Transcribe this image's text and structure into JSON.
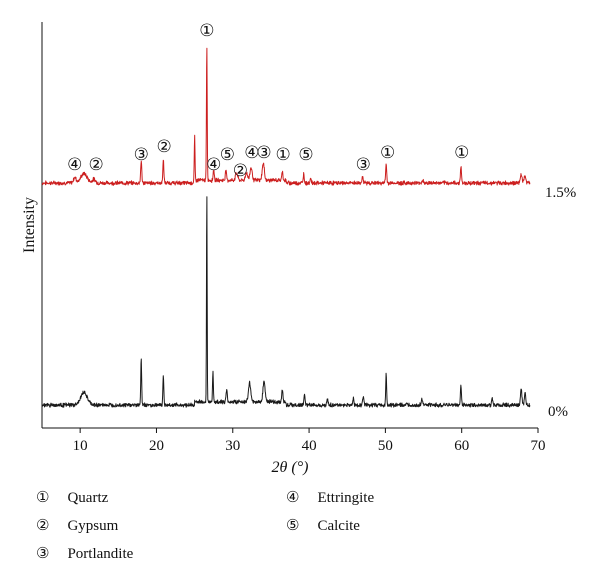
{
  "chart_data": {
    "type": "line",
    "xlabel": "2θ (°)",
    "ylabel": "Intensity",
    "xlim": [
      5,
      70
    ],
    "xticks": [
      "10",
      "20",
      "30",
      "40",
      "50",
      "60",
      "70"
    ],
    "grid": false,
    "series": [
      {
        "name": "1.5%",
        "color": "#cc1f1f",
        "baseline": 0.0,
        "peaks": [
          {
            "x": 9.3,
            "h": 3,
            "w": 0.25
          },
          {
            "x": 10.5,
            "h": 5,
            "w": 0.6
          },
          {
            "x": 11.8,
            "h": 2,
            "w": 0.3
          },
          {
            "x": 18.0,
            "h": 12,
            "w": 0.1
          },
          {
            "x": 20.9,
            "h": 12,
            "w": 0.1
          },
          {
            "x": 25.0,
            "h": 24,
            "w": 0.07
          },
          {
            "x": 26.6,
            "h": 72,
            "w": 0.07
          },
          {
            "x": 27.5,
            "h": 6,
            "w": 0.1
          },
          {
            "x": 29.1,
            "h": 5,
            "w": 0.12
          },
          {
            "x": 30.5,
            "h": 4,
            "w": 0.2
          },
          {
            "x": 31.8,
            "h": 4,
            "w": 0.2
          },
          {
            "x": 32.4,
            "h": 7,
            "w": 0.2
          },
          {
            "x": 34.0,
            "h": 9,
            "w": 0.2
          },
          {
            "x": 36.5,
            "h": 5,
            "w": 0.1
          },
          {
            "x": 39.3,
            "h": 5,
            "w": 0.1
          },
          {
            "x": 40.2,
            "h": 3,
            "w": 0.1
          },
          {
            "x": 47.0,
            "h": 4,
            "w": 0.1
          },
          {
            "x": 50.1,
            "h": 10,
            "w": 0.1
          },
          {
            "x": 54.9,
            "h": 2,
            "w": 0.1
          },
          {
            "x": 59.9,
            "h": 9,
            "w": 0.1
          },
          {
            "x": 67.8,
            "h": 5,
            "w": 0.15
          },
          {
            "x": 68.3,
            "h": 4,
            "w": 0.15
          }
        ]
      },
      {
        "name": "0%",
        "color": "#1a1a1a",
        "baseline": 0.0,
        "peaks": [
          {
            "x": 10.5,
            "h": 6,
            "w": 0.6
          },
          {
            "x": 18.0,
            "h": 23,
            "w": 0.08
          },
          {
            "x": 20.9,
            "h": 15,
            "w": 0.08
          },
          {
            "x": 26.6,
            "h": 100,
            "w": 0.06
          },
          {
            "x": 27.4,
            "h": 14,
            "w": 0.08
          },
          {
            "x": 29.2,
            "h": 5,
            "w": 0.12
          },
          {
            "x": 32.2,
            "h": 9,
            "w": 0.2
          },
          {
            "x": 34.1,
            "h": 10,
            "w": 0.2
          },
          {
            "x": 36.5,
            "h": 6,
            "w": 0.1
          },
          {
            "x": 39.4,
            "h": 5,
            "w": 0.1
          },
          {
            "x": 42.4,
            "h": 3,
            "w": 0.1
          },
          {
            "x": 45.8,
            "h": 3,
            "w": 0.1
          },
          {
            "x": 47.1,
            "h": 4,
            "w": 0.1
          },
          {
            "x": 50.1,
            "h": 15,
            "w": 0.08
          },
          {
            "x": 54.8,
            "h": 3,
            "w": 0.1
          },
          {
            "x": 59.9,
            "h": 9,
            "w": 0.1
          },
          {
            "x": 64.0,
            "h": 3,
            "w": 0.1
          },
          {
            "x": 67.8,
            "h": 8,
            "w": 0.12
          },
          {
            "x": 68.3,
            "h": 6,
            "w": 0.12
          }
        ]
      }
    ],
    "annotations": [
      {
        "label": "①",
        "x": 26.6,
        "series": "1.5%",
        "tier": "top"
      },
      {
        "label": "④",
        "x": 9.3,
        "series": "1.5%",
        "tier": "high"
      },
      {
        "label": "②",
        "x": 12.1,
        "series": "1.5%",
        "tier": "high"
      },
      {
        "label": "③",
        "x": 18.0,
        "series": "1.5%",
        "tier": "mid"
      },
      {
        "label": "②",
        "x": 21.0,
        "series": "1.5%",
        "tier": "upper"
      },
      {
        "label": "④",
        "x": 27.5,
        "series": "1.5%",
        "tier": "high"
      },
      {
        "label": "⑤",
        "x": 29.3,
        "series": "1.5%",
        "tier": "mid"
      },
      {
        "label": "②",
        "x": 31.0,
        "series": "1.5%",
        "tier": "lowmid"
      },
      {
        "label": "④",
        "x": 32.5,
        "series": "1.5%",
        "tier": "upper2"
      },
      {
        "label": "③",
        "x": 34.1,
        "series": "1.5%",
        "tier": "upper2"
      },
      {
        "label": "①",
        "x": 36.6,
        "series": "1.5%",
        "tier": "mid"
      },
      {
        "label": "⑤",
        "x": 39.6,
        "series": "1.5%",
        "tier": "mid"
      },
      {
        "label": "③",
        "x": 47.1,
        "series": "1.5%",
        "tier": "high"
      },
      {
        "label": "①",
        "x": 50.3,
        "series": "1.5%",
        "tier": "upper2"
      },
      {
        "label": "①",
        "x": 60.0,
        "series": "1.5%",
        "tier": "upper2"
      }
    ],
    "series_labels": [
      "1.5%",
      "0%"
    ]
  },
  "legend": [
    {
      "key": "①",
      "text": "Quartz"
    },
    {
      "key": "②",
      "text": "Gypsum"
    },
    {
      "key": "③",
      "text": "Portlandite"
    },
    {
      "key": "④",
      "text": "Ettringite"
    },
    {
      "key": "⑤",
      "text": "Calcite"
    }
  ]
}
